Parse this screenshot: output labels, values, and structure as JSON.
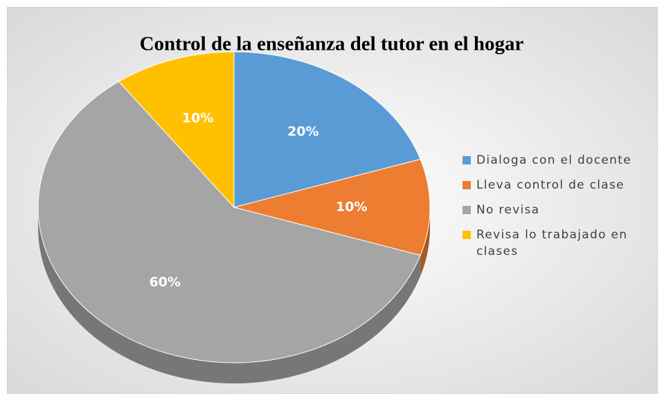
{
  "chart_data": {
    "type": "pie",
    "title": "Control de la enseñanza del tutor en el hogar",
    "categories": [
      "Dialoga con el docente",
      "Lleva control de clase",
      "No revisa",
      "Revisa lo trabajado en clases"
    ],
    "values": [
      20,
      10,
      60,
      10
    ],
    "value_labels": [
      "20%",
      "10%",
      "60%",
      "10%"
    ],
    "colors": [
      "#5b9bd5",
      "#ed7d31",
      "#a5a5a5",
      "#ffc000"
    ],
    "legend": "right"
  }
}
